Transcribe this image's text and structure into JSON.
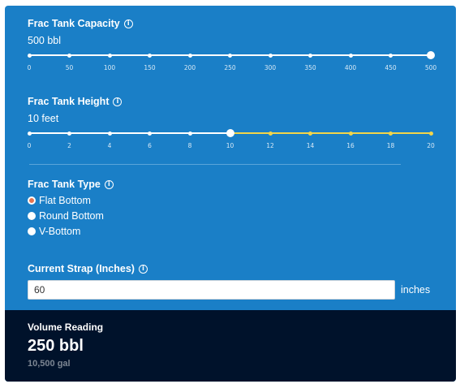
{
  "colors": {
    "panel": "#1a7fc7",
    "result_panel": "#00122b",
    "track_filled": "#ffffff",
    "track_remaining": "#f2d54a",
    "radio_selected": "#e5734f"
  },
  "capacity": {
    "title": "Frac Tank Capacity",
    "info_icon": "info-icon",
    "value_text": "500 bbl",
    "min": 0,
    "max": 500,
    "value": 500,
    "ticks": [
      "0",
      "50",
      "100",
      "150",
      "200",
      "250",
      "300",
      "350",
      "400",
      "450",
      "500"
    ]
  },
  "height": {
    "title": "Frac Tank Height",
    "info_icon": "info-icon",
    "value_text": "10 feet",
    "min": 0,
    "max": 20,
    "value": 10,
    "ticks": [
      "0",
      "2",
      "4",
      "6",
      "8",
      "10",
      "12",
      "14",
      "16",
      "18",
      "20"
    ]
  },
  "tank_type": {
    "title": "Frac Tank Type",
    "info_icon": "info-icon",
    "options": [
      {
        "label": "Flat Bottom",
        "selected": true
      },
      {
        "label": "Round Bottom",
        "selected": false
      },
      {
        "label": "V-Bottom",
        "selected": false
      }
    ]
  },
  "strap": {
    "title": "Current Strap (Inches)",
    "info_icon": "info-icon",
    "value": "60",
    "units": "inches"
  },
  "result": {
    "label": "Volume Reading",
    "value": "250 bbl",
    "secondary": "10,500 gal"
  }
}
